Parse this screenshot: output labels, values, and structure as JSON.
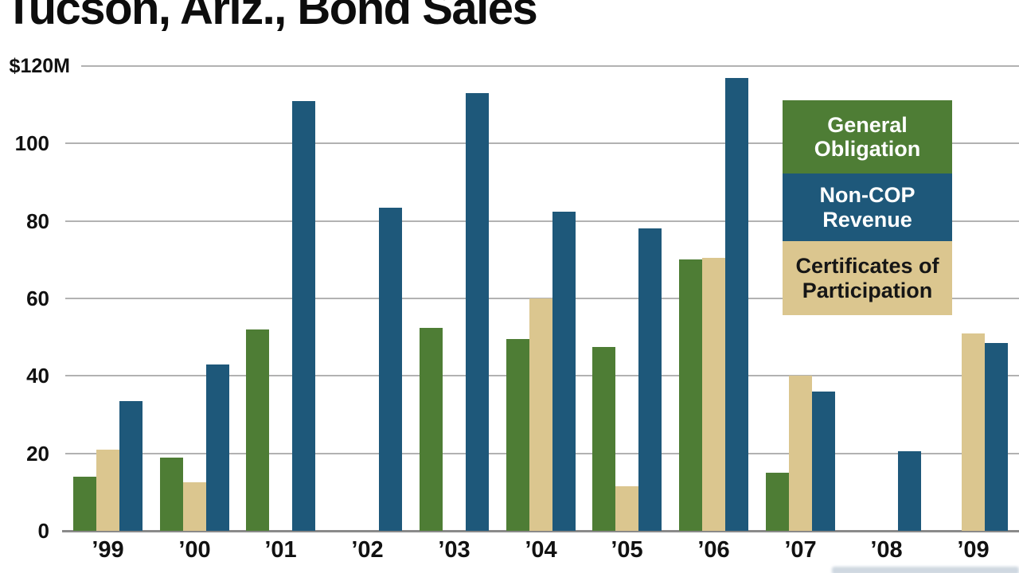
{
  "chart_data": {
    "type": "bar",
    "title": "Tucson, Ariz., Bond Sales",
    "value_unit": "millions of dollars",
    "categories": [
      "’99",
      "’00",
      "’01",
      "’02",
      "’03",
      "’04",
      "’05",
      "’06",
      "’07",
      "’08",
      "’09"
    ],
    "series": [
      {
        "name": "General Obligation",
        "color": "#4e7d35",
        "values": [
          14,
          19,
          52,
          null,
          52.5,
          49.5,
          47.5,
          70,
          15,
          null,
          null
        ]
      },
      {
        "name": "Certificates of Participation",
        "color": "#dbc68f",
        "values": [
          21,
          12.5,
          null,
          null,
          null,
          60,
          11.5,
          70.5,
          40,
          null,
          51
        ]
      },
      {
        "name": "Non-COP Revenue",
        "color": "#1e587a",
        "values": [
          33.5,
          43,
          111,
          83.5,
          113,
          82.5,
          78,
          117,
          36,
          20.5,
          48.5
        ]
      }
    ],
    "y_axis": {
      "range": [
        0,
        120
      ],
      "grid": true,
      "ticks": [
        {
          "value": 120,
          "label": "$120M"
        },
        {
          "value": 100,
          "label": "100"
        },
        {
          "value": 80,
          "label": "80"
        },
        {
          "value": 60,
          "label": "60"
        },
        {
          "value": 40,
          "label": "40"
        },
        {
          "value": 20,
          "label": "20"
        },
        {
          "value": 0,
          "label": "0"
        }
      ]
    },
    "legend": {
      "position": "top-right",
      "entries": [
        {
          "label": "General Obligation",
          "bg": "#4e7d35",
          "fg": "#ffffff"
        },
        {
          "label": "Non-COP Revenue",
          "bg": "#1e587a",
          "fg": "#ffffff"
        },
        {
          "label": "Certificates of Participation",
          "bg": "#dbc68f",
          "fg": "#161616"
        }
      ]
    },
    "colors": {
      "background": "#ffffff",
      "gridline": "#b2b2b2",
      "axis_line": "#8a8a8a",
      "text": "#111111"
    }
  }
}
